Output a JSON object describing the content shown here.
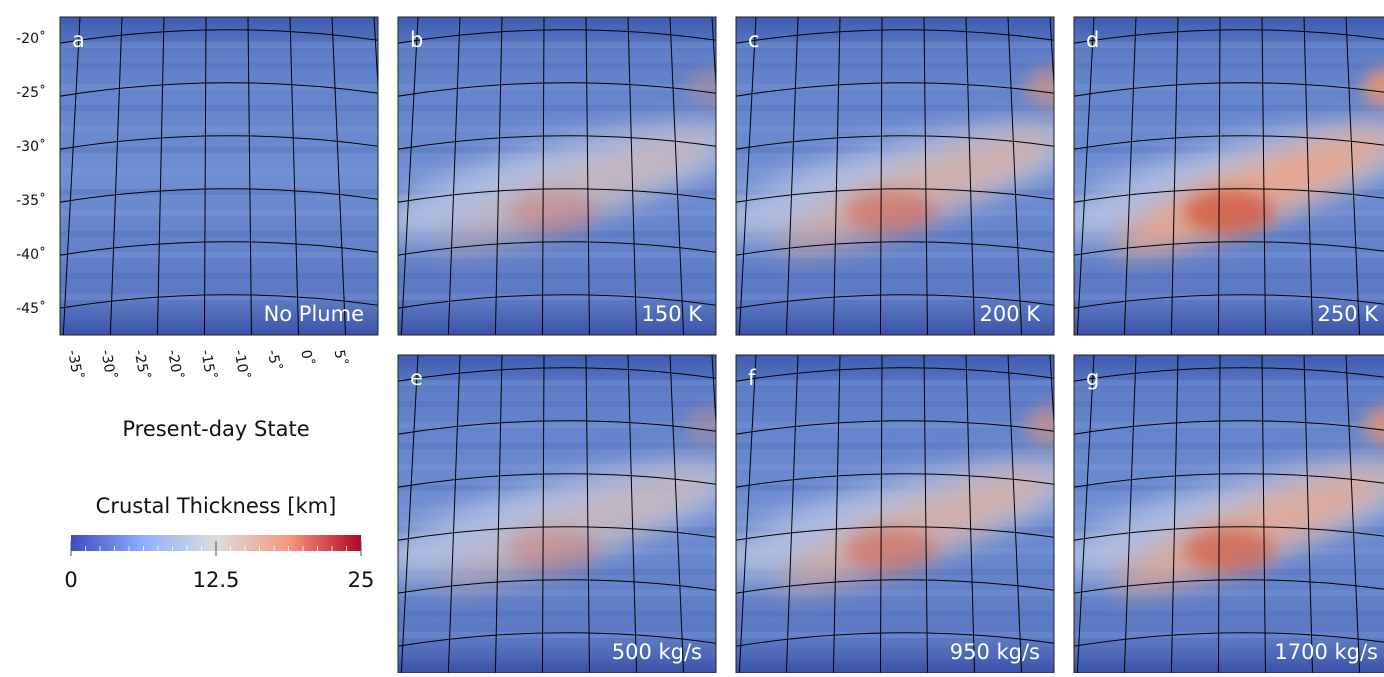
{
  "panels": [
    {
      "letter": "a",
      "label": "No Plume"
    },
    {
      "letter": "b",
      "label": "150 K"
    },
    {
      "letter": "c",
      "label": "200 K"
    },
    {
      "letter": "d",
      "label": "250 K"
    },
    {
      "letter": "e",
      "label": "500 kg/s"
    },
    {
      "letter": "f",
      "label": "950 kg/s"
    },
    {
      "letter": "g",
      "label": "1700 kg/s"
    }
  ],
  "latitude_labels": [
    "-20˚",
    "-25˚",
    "-30˚",
    "-35˚",
    "-40˚",
    "-45˚"
  ],
  "longitude_labels": [
    "-35˚",
    "-30˚",
    "-25˚",
    "-20˚",
    "-15˚",
    "-10˚",
    "-5˚",
    "0˚",
    "5˚"
  ],
  "subtitle": "Present-day State",
  "colorbar": {
    "title": "Crustal Thickness [km]",
    "lim": [
      0,
      25
    ],
    "ticks": [
      0,
      12.5,
      25
    ]
  }
}
